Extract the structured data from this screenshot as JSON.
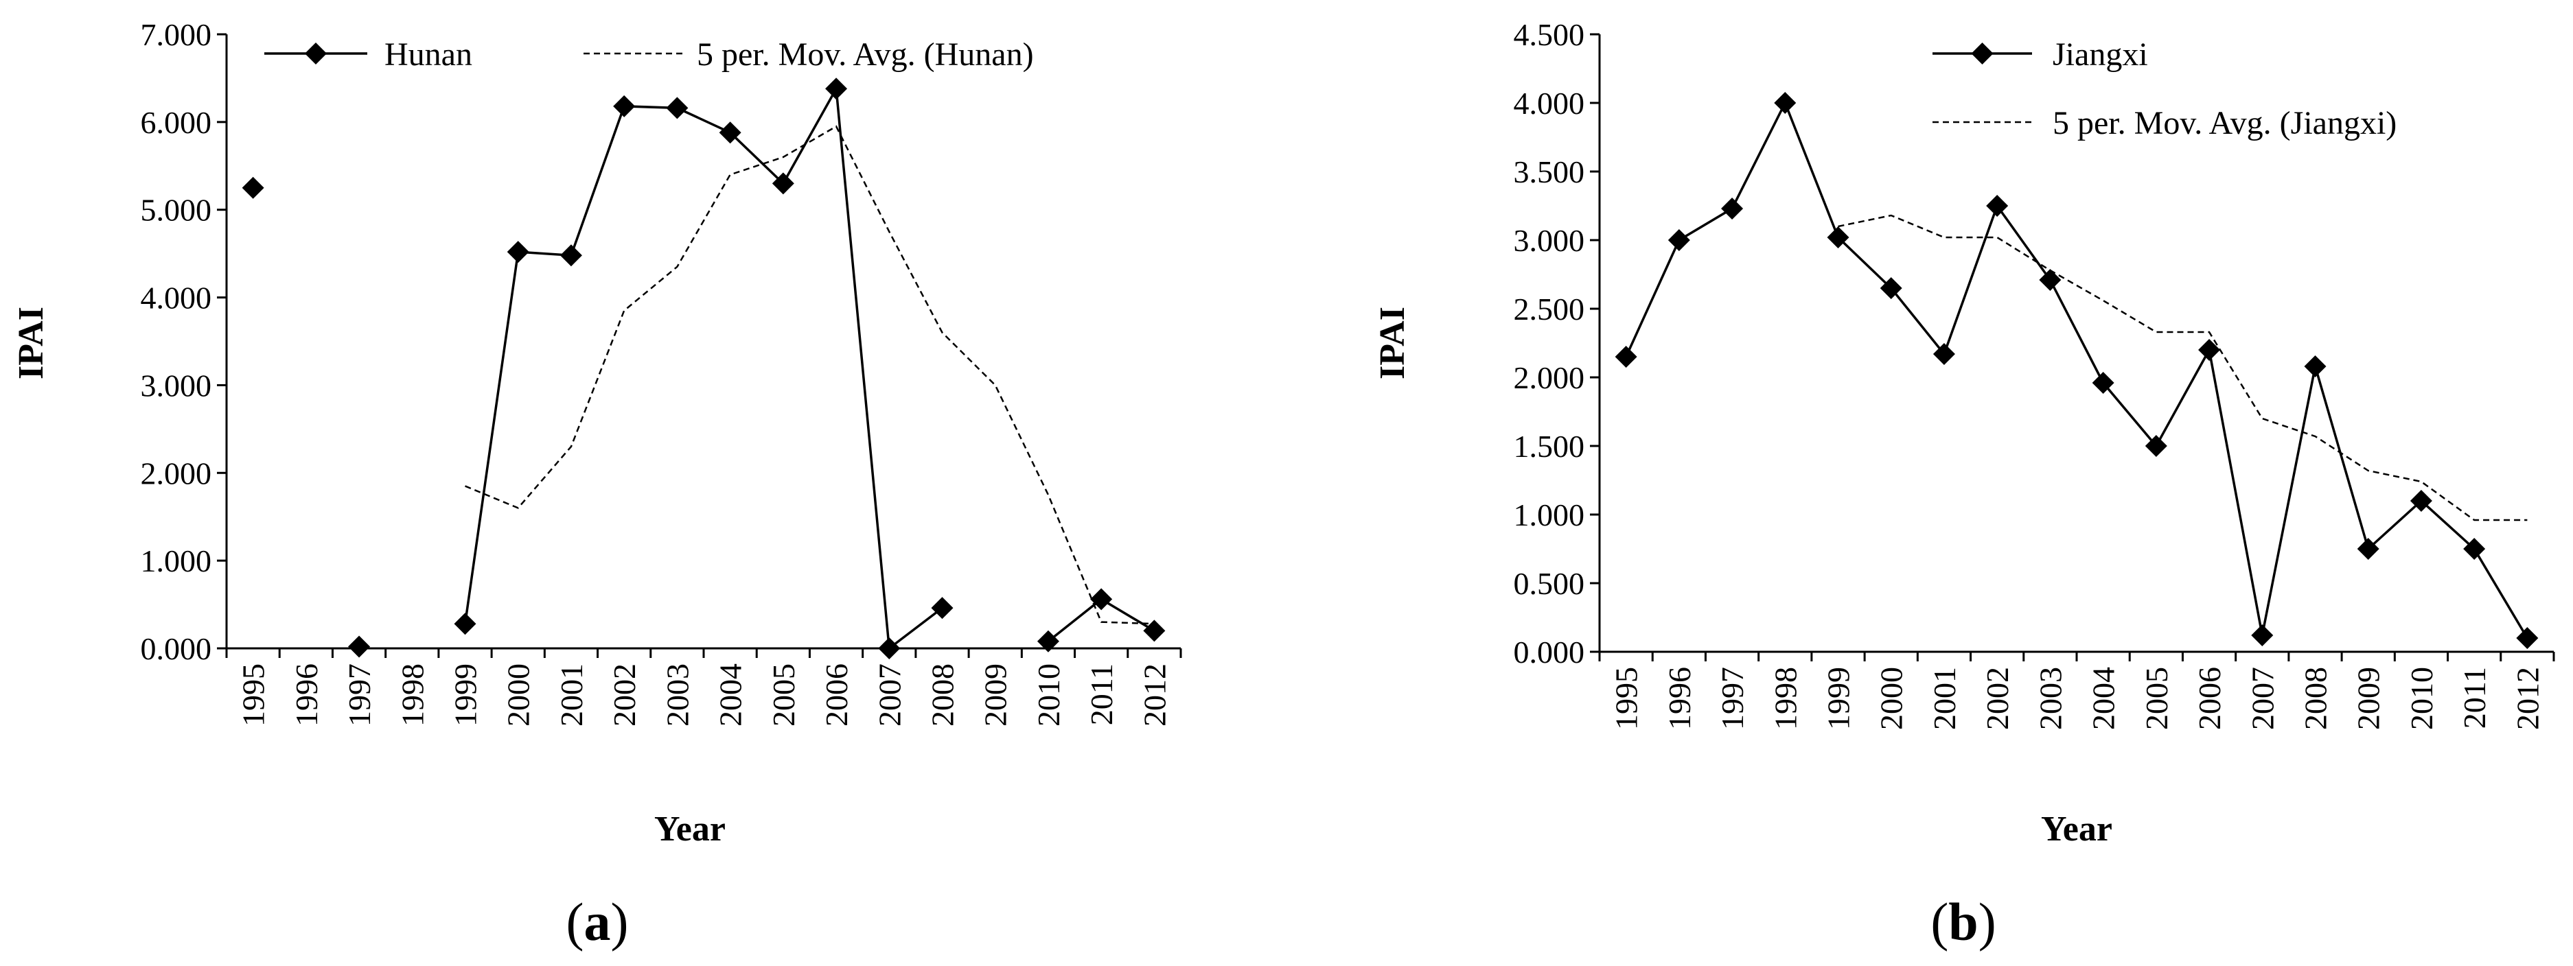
{
  "chart_data": [
    {
      "type": "line",
      "panel_label": "a",
      "xlabel": "Year",
      "ylabel": "IPAI",
      "ylim": [
        0,
        7
      ],
      "y_ticks": [
        "0.000",
        "1.000",
        "2.000",
        "3.000",
        "4.000",
        "5.000",
        "6.000",
        "7.000"
      ],
      "categories": [
        "1995",
        "1996",
        "1997",
        "1998",
        "1999",
        "2000",
        "2001",
        "2002",
        "2003",
        "2004",
        "2005",
        "2006",
        "2007",
        "2008",
        "2009",
        "2010",
        "2011",
        "2012"
      ],
      "legend_position": "top",
      "series": [
        {
          "name": "Hunan",
          "style": "solid-diamond",
          "values": [
            5.25,
            null,
            0.02,
            null,
            0.28,
            4.52,
            4.48,
            6.18,
            6.16,
            5.88,
            5.3,
            6.38,
            0.0,
            0.46,
            null,
            0.08,
            0.56,
            0.2
          ]
        },
        {
          "name": "5 per. Mov. Avg. (Hunan)",
          "style": "dashed",
          "values": [
            null,
            null,
            null,
            null,
            1.85,
            1.6,
            2.3,
            3.85,
            4.35,
            5.4,
            5.6,
            5.95,
            4.75,
            3.6,
            3.0,
            1.75,
            0.3,
            0.28
          ]
        }
      ]
    },
    {
      "type": "line",
      "panel_label": "b",
      "xlabel": "Year",
      "ylabel": "IPAI",
      "ylim": [
        0,
        4.5
      ],
      "y_ticks": [
        "0.000",
        "0.500",
        "1.000",
        "1.500",
        "2.000",
        "2.500",
        "3.000",
        "3.500",
        "4.000",
        "4.500"
      ],
      "categories": [
        "1995",
        "1996",
        "1997",
        "1998",
        "1999",
        "2000",
        "2001",
        "2002",
        "2003",
        "2004",
        "2005",
        "2006",
        "2007",
        "2008",
        "2009",
        "2010",
        "2011",
        "2012"
      ],
      "legend_position": "top-right",
      "series": [
        {
          "name": "Jiangxi",
          "style": "solid-diamond",
          "values": [
            2.15,
            3.0,
            3.23,
            4.0,
            3.02,
            2.65,
            2.17,
            3.25,
            2.71,
            1.96,
            1.5,
            2.2,
            0.12,
            2.08,
            0.75,
            1.1,
            0.75,
            0.1
          ]
        },
        {
          "name": "5 per. Mov. Avg. (Jiangxi)",
          "style": "dashed",
          "values": [
            null,
            null,
            null,
            null,
            3.1,
            3.18,
            3.02,
            3.02,
            2.78,
            2.56,
            2.33,
            2.33,
            1.7,
            1.57,
            1.32,
            1.24,
            0.96,
            0.96
          ]
        }
      ]
    }
  ]
}
